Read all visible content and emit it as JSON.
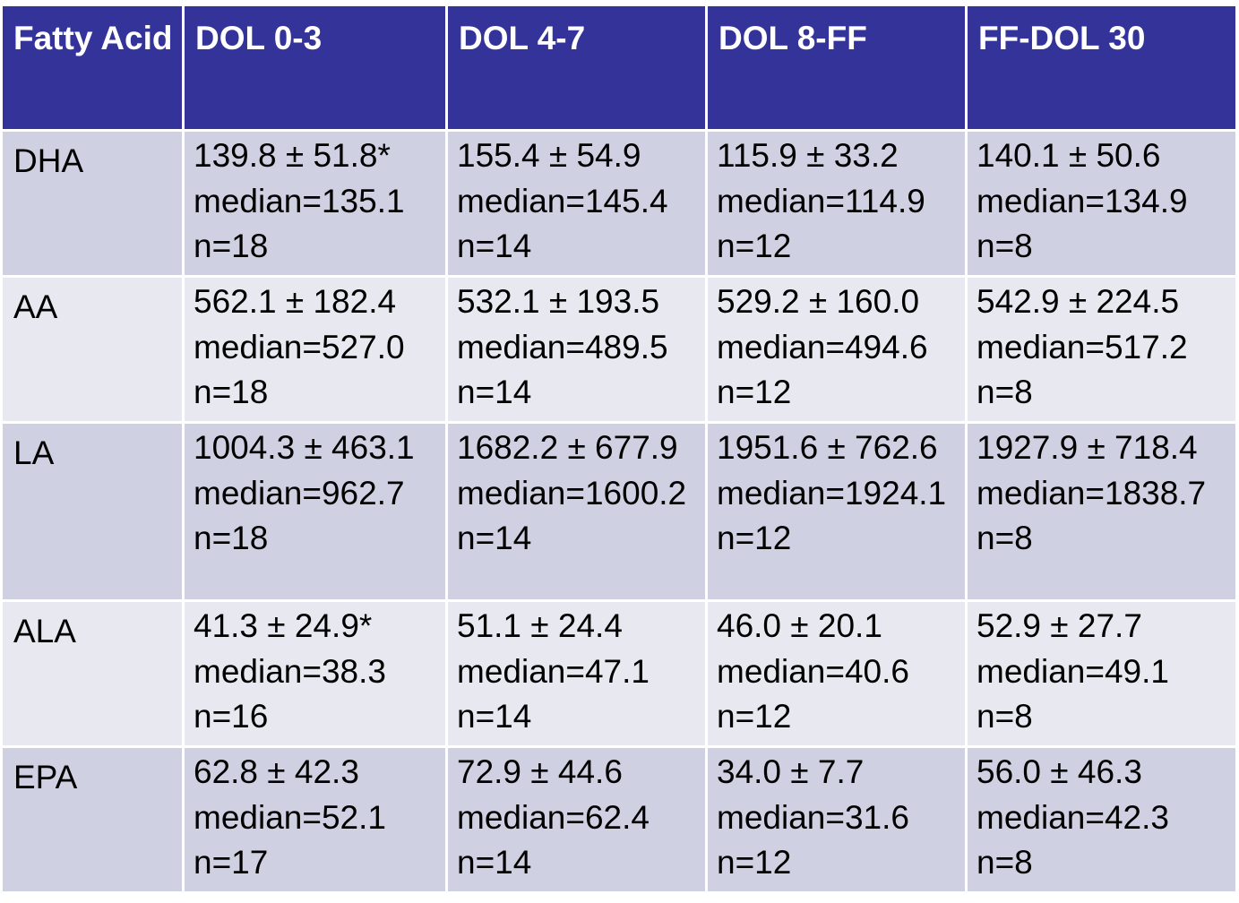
{
  "header": [
    "Fatty Acid",
    "DOL 0-3",
    "DOL 4-7",
    "DOL 8-FF",
    "FF-DOL 30"
  ],
  "rows": [
    {
      "label": "DHA",
      "cells": [
        {
          "mean_sd": "139.8 ± 51.8*",
          "median": "median=135.1",
          "n": "n=18"
        },
        {
          "mean_sd": "155.4 ± 54.9",
          "median": "median=145.4",
          "n": "n=14"
        },
        {
          "mean_sd": "115.9 ± 33.2",
          "median": "median=114.9",
          "n": "n=12"
        },
        {
          "mean_sd": "140.1 ± 50.6",
          "median": "median=134.9",
          "n": "n=8"
        }
      ]
    },
    {
      "label": "AA",
      "cells": [
        {
          "mean_sd": "562.1 ± 182.4",
          "median": "median=527.0",
          "n": "n=18"
        },
        {
          "mean_sd": "532.1 ± 193.5",
          "median": "median=489.5",
          "n": "n=14"
        },
        {
          "mean_sd": "529.2 ± 160.0",
          "median": "median=494.6",
          "n": "n=12"
        },
        {
          "mean_sd": "542.9 ± 224.5",
          "median": "median=517.2",
          "n": "n=8"
        }
      ]
    },
    {
      "label": "LA",
      "cells": [
        {
          "mean_sd": "1004.3 ± 463.1",
          "median": "median=962.7",
          "n": "n=18"
        },
        {
          "mean_sd": "1682.2 ± 677.9",
          "median": "median=1600.2",
          "n": "n=14"
        },
        {
          "mean_sd": "1951.6 ± 762.6",
          "median": "median=1924.1",
          "n": "n=12"
        },
        {
          "mean_sd": "1927.9 ± 718.4",
          "median": "median=1838.7",
          "n": "n=8"
        }
      ]
    },
    {
      "label": "ALA",
      "cells": [
        {
          "mean_sd": "41.3 ± 24.9*",
          "median": "median=38.3",
          "n": "n=16"
        },
        {
          "mean_sd": "51.1 ± 24.4",
          "median": "median=47.1",
          "n": "n=14"
        },
        {
          "mean_sd": "46.0 ± 20.1",
          "median": "median=40.6",
          "n": "n=12"
        },
        {
          "mean_sd": "52.9 ± 27.7",
          "median": "median=49.1",
          "n": "n=8"
        }
      ]
    },
    {
      "label": "EPA",
      "cells": [
        {
          "mean_sd": "62.8 ± 42.3",
          "median": "median=52.1",
          "n": "n=17"
        },
        {
          "mean_sd": "72.9 ± 44.6",
          "median": "median=62.4",
          "n": "n=14"
        },
        {
          "mean_sd": "34.0 ± 7.7",
          "median": "median=31.6",
          "n": "n=12"
        },
        {
          "mean_sd": "56.0 ± 46.3",
          "median": "median=42.3",
          "n": "n=8"
        }
      ]
    }
  ],
  "colors": {
    "header_bg": "#333399",
    "header_text": "#ffffff",
    "row_odd_bg": "#cfd0e2",
    "row_even_bg": "#e7e8f0",
    "border": "#ffffff"
  }
}
